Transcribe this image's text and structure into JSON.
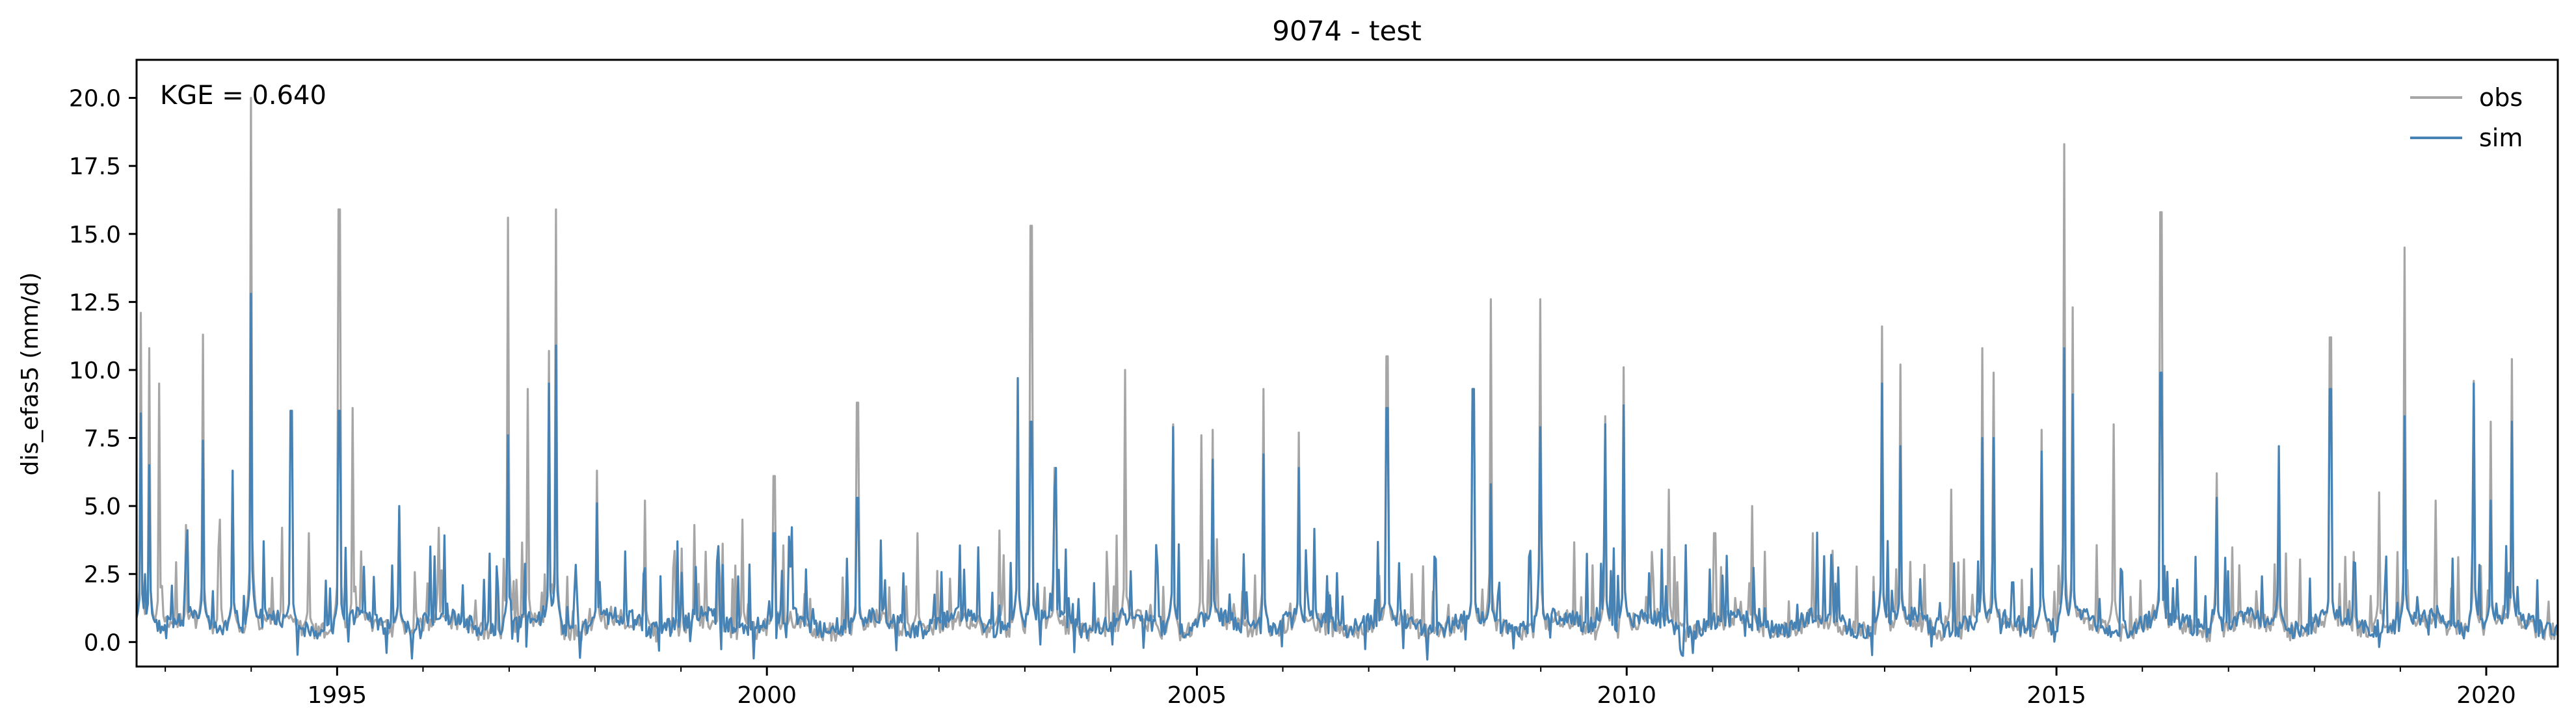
{
  "chart_data": {
    "type": "line",
    "title": "9074 - test",
    "xlabel": "",
    "ylabel": "dis_efas5 (mm/d)",
    "annotation": "KGE = 0.640",
    "xlim": [
      "1992-09-01",
      "2020-10-31"
    ],
    "ylim": [
      -0.9,
      21.4
    ],
    "x_major_ticks": [
      "1995",
      "2000",
      "2005",
      "2010",
      "2015",
      "2020"
    ],
    "y_ticks": [
      "0.0",
      "2.5",
      "5.0",
      "7.5",
      "10.0",
      "12.5",
      "15.0",
      "17.5",
      "20.0"
    ],
    "legend_position": "top-right",
    "grid": false,
    "colors": {
      "obs": "#a6a6a6",
      "sim": "#4682b4"
    },
    "series": [
      {
        "name": "obs",
        "baseline": 0.5,
        "peaks": [
          [
            "1992-09-20",
            12.1
          ],
          [
            "1992-10-25",
            10.8
          ],
          [
            "1992-12-08",
            9.5
          ],
          [
            "1993-04-01",
            4.3
          ],
          [
            "1993-06-10",
            11.3
          ],
          [
            "1993-08-20",
            4.5
          ],
          [
            "1993-10-15",
            6.3
          ],
          [
            "1994-01-02",
            20.0
          ],
          [
            "1994-05-10",
            4.2
          ],
          [
            "1994-09-01",
            4.0
          ],
          [
            "1995-01-10",
            15.9
          ],
          [
            "1995-03-10",
            8.6
          ],
          [
            "1995-09-20",
            4.9
          ],
          [
            "1996-03-10",
            4.2
          ],
          [
            "1996-12-28",
            15.6
          ],
          [
            "1997-03-20",
            9.3
          ],
          [
            "1997-06-20",
            10.7
          ],
          [
            "1997-07-18",
            15.9
          ],
          [
            "1998-01-10",
            6.3
          ],
          [
            "1998-08-01",
            5.2
          ],
          [
            "1999-03-01",
            4.3
          ],
          [
            "1999-09-20",
            4.5
          ],
          [
            "2000-02-01",
            6.1
          ],
          [
            "2001-01-20",
            8.8
          ],
          [
            "2001-10-01",
            4.0
          ],
          [
            "2002-09-15",
            4.1
          ],
          [
            "2002-12-01",
            9.7
          ],
          [
            "2003-01-28",
            15.3
          ],
          [
            "2003-05-10",
            6.4
          ],
          [
            "2004-03-01",
            10.0
          ],
          [
            "2004-09-20",
            8.0
          ],
          [
            "2005-01-20",
            7.6
          ],
          [
            "2005-03-10",
            7.8
          ],
          [
            "2005-10-10",
            9.3
          ],
          [
            "2006-03-10",
            7.7
          ],
          [
            "2007-03-20",
            10.5
          ],
          [
            "2008-03-20",
            9.3
          ],
          [
            "2008-06-01",
            12.6
          ],
          [
            "2008-12-28",
            12.6
          ],
          [
            "2009-10-01",
            8.3
          ],
          [
            "2009-12-20",
            10.1
          ],
          [
            "2010-07-01",
            5.6
          ],
          [
            "2011-01-10",
            4.0
          ],
          [
            "2011-06-20",
            5.0
          ],
          [
            "2012-03-01",
            4.0
          ],
          [
            "2012-12-20",
            11.6
          ],
          [
            "2013-03-10",
            10.2
          ],
          [
            "2013-10-10",
            5.6
          ],
          [
            "2014-02-20",
            10.8
          ],
          [
            "2014-04-10",
            9.9
          ],
          [
            "2014-11-01",
            7.8
          ],
          [
            "2015-02-01",
            18.3
          ],
          [
            "2015-03-10",
            12.3
          ],
          [
            "2015-09-01",
            8.0
          ],
          [
            "2016-03-20",
            15.8
          ],
          [
            "2016-11-10",
            6.2
          ],
          [
            "2017-08-01",
            5.0
          ],
          [
            "2018-03-10",
            11.2
          ],
          [
            "2018-10-01",
            5.5
          ],
          [
            "2019-01-20",
            14.5
          ],
          [
            "2019-06-01",
            5.2
          ],
          [
            "2019-11-10",
            9.6
          ],
          [
            "2020-01-20",
            8.1
          ],
          [
            "2020-04-20",
            10.4
          ]
        ]
      },
      {
        "name": "sim",
        "baseline": 0.6,
        "peaks": [
          [
            "1992-09-20",
            8.4
          ],
          [
            "1992-10-25",
            6.5
          ],
          [
            "1993-06-10",
            7.4
          ],
          [
            "1993-10-15",
            6.3
          ],
          [
            "1994-01-02",
            12.8
          ],
          [
            "1994-06-20",
            8.5
          ],
          [
            "1995-01-10",
            8.5
          ],
          [
            "1995-09-20",
            5.0
          ],
          [
            "1996-12-28",
            7.6
          ],
          [
            "1997-06-20",
            9.5
          ],
          [
            "1997-07-18",
            10.9
          ],
          [
            "1998-01-10",
            5.1
          ],
          [
            "2000-02-01",
            4.0
          ],
          [
            "2001-01-20",
            5.3
          ],
          [
            "2002-12-01",
            9.7
          ],
          [
            "2003-01-28",
            8.1
          ],
          [
            "2003-05-10",
            6.4
          ],
          [
            "2004-09-20",
            7.9
          ],
          [
            "2005-03-10",
            6.7
          ],
          [
            "2005-10-10",
            6.9
          ],
          [
            "2006-03-10",
            6.4
          ],
          [
            "2007-03-20",
            8.6
          ],
          [
            "2008-03-20",
            9.3
          ],
          [
            "2008-06-01",
            5.8
          ],
          [
            "2008-12-28",
            7.9
          ],
          [
            "2009-10-01",
            8.0
          ],
          [
            "2009-12-20",
            8.7
          ],
          [
            "2012-12-20",
            9.5
          ],
          [
            "2013-03-10",
            7.2
          ],
          [
            "2014-02-20",
            7.5
          ],
          [
            "2014-04-10",
            7.5
          ],
          [
            "2014-11-01",
            7.0
          ],
          [
            "2015-02-01",
            10.8
          ],
          [
            "2015-03-10",
            9.1
          ],
          [
            "2016-03-20",
            9.9
          ],
          [
            "2016-11-10",
            5.3
          ],
          [
            "2017-08-01",
            7.2
          ],
          [
            "2018-03-10",
            9.3
          ],
          [
            "2019-01-20",
            8.3
          ],
          [
            "2019-11-10",
            9.5
          ],
          [
            "2020-01-20",
            6.0
          ],
          [
            "2020-04-20",
            8.9
          ]
        ]
      }
    ]
  }
}
